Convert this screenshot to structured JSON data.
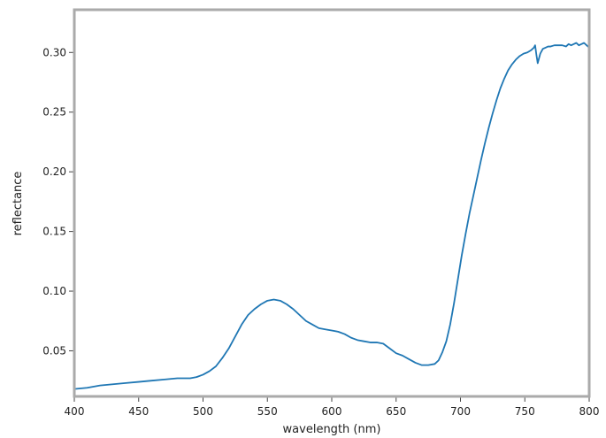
{
  "chart_data": {
    "type": "line",
    "title": "",
    "xlabel": "wavelength (nm)",
    "ylabel": "reflectance",
    "xlim": [
      400,
      800
    ],
    "ylim": [
      0.0118,
      0.3358
    ],
    "x_ticks": [
      400,
      450,
      500,
      550,
      600,
      650,
      700,
      750,
      800
    ],
    "x_tick_labels": [
      "400",
      "450",
      "500",
      "550",
      "600",
      "650",
      "700",
      "750",
      "800"
    ],
    "y_ticks": [
      0.05,
      0.1,
      0.15,
      0.2,
      0.25,
      0.3
    ],
    "y_tick_labels": [
      "0.05",
      "0.10",
      "0.15",
      "0.20",
      "0.25",
      "0.30"
    ],
    "grid": false,
    "legend": false,
    "colors": {
      "line": "#1f77b4",
      "frame": "#aaaaaa",
      "tick": "#444444"
    },
    "series": [
      {
        "x": [
          400,
          410,
          420,
          430,
          440,
          450,
          460,
          470,
          480,
          490,
          495,
          500,
          505,
          510,
          515,
          520,
          525,
          530,
          535,
          540,
          545,
          550,
          555,
          560,
          565,
          570,
          575,
          580,
          585,
          590,
          595,
          600,
          605,
          610,
          615,
          620,
          625,
          630,
          635,
          640,
          645,
          650,
          655,
          660,
          665,
          670,
          675,
          680,
          683,
          686,
          689,
          692,
          695,
          698,
          701,
          704,
          707,
          710,
          713,
          716,
          719,
          722,
          725,
          728,
          731,
          734,
          737,
          740,
          743,
          746,
          749,
          752,
          755,
          757,
          758,
          759,
          760,
          761,
          762,
          764,
          766,
          768,
          770,
          773,
          776,
          779,
          782,
          784,
          786,
          788,
          790,
          792,
          794,
          796,
          798,
          800
        ],
        "values": [
          0.018,
          0.019,
          0.021,
          0.022,
          0.023,
          0.024,
          0.025,
          0.026,
          0.027,
          0.027,
          0.028,
          0.03,
          0.033,
          0.037,
          0.044,
          0.052,
          0.062,
          0.072,
          0.08,
          0.085,
          0.089,
          0.092,
          0.093,
          0.092,
          0.089,
          0.085,
          0.08,
          0.075,
          0.072,
          0.069,
          0.068,
          0.067,
          0.066,
          0.064,
          0.061,
          0.059,
          0.058,
          0.057,
          0.057,
          0.056,
          0.052,
          0.048,
          0.046,
          0.043,
          0.04,
          0.038,
          0.038,
          0.039,
          0.042,
          0.049,
          0.058,
          0.072,
          0.09,
          0.11,
          0.13,
          0.148,
          0.165,
          0.18,
          0.195,
          0.21,
          0.224,
          0.237,
          0.249,
          0.26,
          0.27,
          0.278,
          0.285,
          0.29,
          0.294,
          0.297,
          0.299,
          0.3,
          0.302,
          0.304,
          0.306,
          0.298,
          0.291,
          0.295,
          0.299,
          0.303,
          0.304,
          0.305,
          0.305,
          0.306,
          0.306,
          0.306,
          0.305,
          0.307,
          0.306,
          0.307,
          0.308,
          0.306,
          0.307,
          0.308,
          0.306,
          0.304
        ]
      }
    ]
  }
}
